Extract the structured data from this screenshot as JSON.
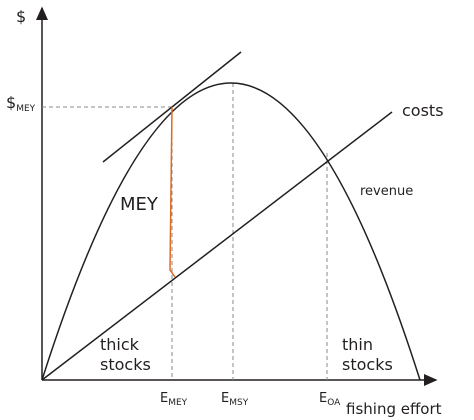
{
  "axes": {
    "y_label": "$",
    "x_label": "fishing effort"
  },
  "y_marker": {
    "main": "$",
    "sub": "MEY"
  },
  "curves": {
    "costs": "costs",
    "revenue": "revenue"
  },
  "annotations": {
    "mey": "MEY",
    "thick": [
      "thick",
      "stocks"
    ],
    "thin": [
      "thin",
      "stocks"
    ]
  },
  "x_markers": [
    {
      "main": "E",
      "sub": "MEY"
    },
    {
      "main": "E",
      "sub": "MSY"
    },
    {
      "main": "E",
      "sub": "OA"
    }
  ]
}
